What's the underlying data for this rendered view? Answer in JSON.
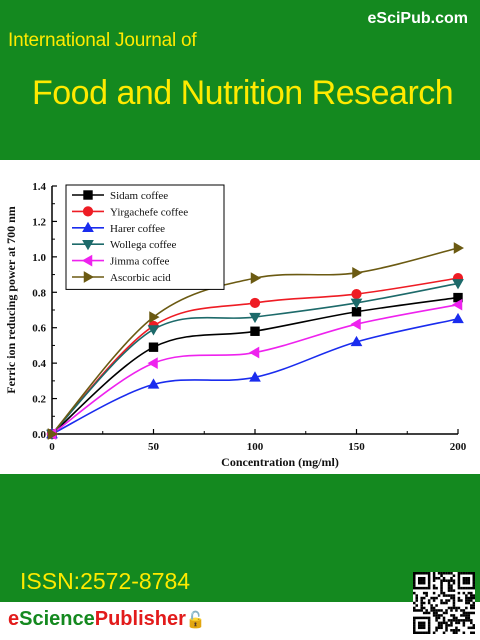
{
  "cover": {
    "brand": "eSciPub.com",
    "journal_line1": "International Journal of",
    "journal_line2": "Food and Nutrition Research",
    "issn": "ISSN:2572-8784",
    "publisher_prefix": "e",
    "publisher_middle": "Science",
    "publisher_suffix": "Publisher",
    "publisher_lock_glyph": "🔓",
    "colors": {
      "green": "#14891f",
      "title_yellow": "#ffea00",
      "publisher_red": "#e21b1b"
    }
  },
  "chart_data": {
    "type": "line",
    "title": "",
    "xlabel": "Concentration (mg/ml)",
    "ylabel": "Ferric ion reducing power at 700 nm",
    "x": [
      0,
      50,
      100,
      150,
      200
    ],
    "xlim": [
      0,
      200
    ],
    "ylim": [
      0,
      1.4
    ],
    "xticks": [
      0,
      50,
      100,
      150,
      200
    ],
    "yticks": [
      0.0,
      0.2,
      0.4,
      0.6,
      0.8,
      1.0,
      1.2,
      1.4
    ],
    "ytick_labels": [
      "0.0",
      "0.2",
      "0.4",
      "0.6",
      "0.8",
      "1.0",
      "1.2",
      "1.4"
    ],
    "grid": false,
    "legend_position": "top-left",
    "series": [
      {
        "name": "Sidam coffee",
        "values": [
          0.0,
          0.49,
          0.58,
          0.69,
          0.77
        ],
        "color": "#000000",
        "marker": "square"
      },
      {
        "name": "Yirgachefe coffee",
        "values": [
          0.0,
          0.61,
          0.74,
          0.79,
          0.88
        ],
        "color": "#ee1c24",
        "marker": "circle"
      },
      {
        "name": "Harer coffee",
        "values": [
          0.0,
          0.28,
          0.32,
          0.52,
          0.65
        ],
        "color": "#1a2cee",
        "marker": "triangle-up"
      },
      {
        "name": "Wollega coffee",
        "values": [
          0.0,
          0.59,
          0.66,
          0.74,
          0.85
        ],
        "color": "#1d6a6a",
        "marker": "triangle-down"
      },
      {
        "name": "Jimma coffee",
        "values": [
          0.0,
          0.4,
          0.46,
          0.62,
          0.73
        ],
        "color": "#ee22ee",
        "marker": "triangle-left"
      },
      {
        "name": "Ascorbic acid",
        "values": [
          0.0,
          0.66,
          0.88,
          0.91,
          1.05
        ],
        "color": "#6b5a12",
        "marker": "triangle-right"
      }
    ]
  }
}
